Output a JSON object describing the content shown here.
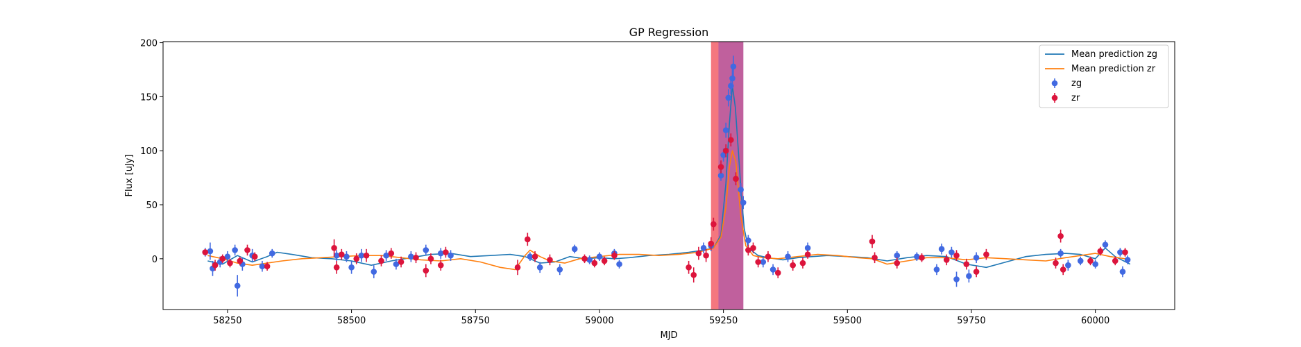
{
  "chart_data": {
    "type": "scatter",
    "title": "GP Regression",
    "xlabel": "MJD",
    "ylabel": "Flux [uJy]",
    "xlim": [
      58120,
      60160
    ],
    "ylim": [
      -47,
      201
    ],
    "xticks": [
      58250,
      58500,
      58750,
      59000,
      59250,
      59500,
      59750,
      60000
    ],
    "yticks": [
      0,
      50,
      100,
      150,
      200
    ],
    "legend_position": "top-right",
    "colors": {
      "line_zg": "#1f77b4",
      "line_zr": "#ff7f0e",
      "points_zg": "#4169e1",
      "points_zr": "#dc143c",
      "band_red": "#f4777f",
      "band_blue": "#a9a3f5",
      "band_overlap": "#c0609d"
    },
    "bands": [
      {
        "name": "red-band",
        "x0": 59225,
        "x1": 59290
      },
      {
        "name": "blue-band",
        "x0": 59240,
        "x1": 59290
      }
    ],
    "series": [
      {
        "name": "Mean prediction zg",
        "kind": "line",
        "color": "#1f77b4",
        "x": [
          58210,
          58240,
          58270,
          58300,
          58330,
          58350,
          58380,
          58420,
          58460,
          58500,
          58540,
          58580,
          58620,
          58660,
          58700,
          58740,
          58780,
          58820,
          58850,
          58880,
          58910,
          58940,
          58970,
          59000,
          59030,
          59060,
          59100,
          59140,
          59180,
          59210,
          59230,
          59245,
          59255,
          59262,
          59268,
          59274,
          59280,
          59286,
          59292,
          59300,
          59320,
          59340,
          59370,
          59400,
          59430,
          59460,
          59500,
          59540,
          59580,
          59620,
          59660,
          59700,
          59740,
          59780,
          59820,
          59860,
          59900,
          59940,
          59970,
          60000,
          60020,
          60040,
          60070
        ],
        "y": [
          -2,
          -5,
          3,
          -3,
          2,
          6,
          4,
          1,
          0,
          -2,
          -6,
          -2,
          1,
          4,
          5,
          2,
          3,
          4,
          2,
          -4,
          -3,
          2,
          0,
          1,
          0,
          1,
          3,
          4,
          6,
          8,
          10,
          22,
          70,
          125,
          160,
          140,
          100,
          60,
          28,
          10,
          3,
          1,
          -1,
          1,
          2,
          3,
          2,
          1,
          -2,
          1,
          3,
          2,
          -5,
          -8,
          -3,
          2,
          4,
          5,
          4,
          0,
          10,
          2,
          -5
        ]
      },
      {
        "name": "Mean prediction zr",
        "kind": "line",
        "color": "#ff7f0e",
        "x": [
          58210,
          58240,
          58270,
          58300,
          58330,
          58360,
          58400,
          58440,
          58480,
          58520,
          58560,
          58600,
          58640,
          58680,
          58720,
          58760,
          58800,
          58830,
          58850,
          58860,
          58880,
          58900,
          58930,
          58960,
          59000,
          59040,
          59080,
          59120,
          59160,
          59200,
          59230,
          59245,
          59255,
          59262,
          59268,
          59275,
          59285,
          59295,
          59310,
          59330,
          59360,
          59400,
          59440,
          59480,
          59520,
          59550,
          59580,
          59620,
          59660,
          59700,
          59740,
          59780,
          59820,
          59860,
          59900,
          59940,
          59970,
          60000,
          60030,
          60060
        ],
        "y": [
          3,
          0,
          -4,
          -6,
          -4,
          -2,
          0,
          1,
          2,
          3,
          3,
          1,
          -1,
          -2,
          0,
          -3,
          -8,
          -10,
          3,
          8,
          2,
          -2,
          -4,
          0,
          2,
          4,
          4,
          3,
          4,
          6,
          10,
          20,
          48,
          85,
          100,
          90,
          40,
          12,
          3,
          1,
          0,
          2,
          4,
          3,
          1,
          0,
          -5,
          -2,
          1,
          1,
          -1,
          1,
          0,
          -1,
          -2,
          1,
          3,
          5,
          2,
          0
        ]
      },
      {
        "name": "zg",
        "kind": "errorbar",
        "color": "#4169e1",
        "points": [
          [
            58205,
            6,
            4
          ],
          [
            58215,
            7,
            8
          ],
          [
            58220,
            -9,
            7
          ],
          [
            58235,
            -3,
            5
          ],
          [
            58250,
            2,
            5
          ],
          [
            58265,
            8,
            5
          ],
          [
            58270,
            -25,
            10
          ],
          [
            58280,
            -5,
            6
          ],
          [
            58300,
            3,
            6
          ],
          [
            58320,
            -7,
            5
          ],
          [
            58340,
            5,
            4
          ],
          [
            58470,
            3,
            5
          ],
          [
            58490,
            2,
            5
          ],
          [
            58500,
            -8,
            6
          ],
          [
            58520,
            3,
            6
          ],
          [
            58545,
            -12,
            6
          ],
          [
            58570,
            3,
            5
          ],
          [
            58590,
            -5,
            5
          ],
          [
            58620,
            2,
            5
          ],
          [
            58650,
            8,
            5
          ],
          [
            58680,
            5,
            5
          ],
          [
            58700,
            3,
            5
          ],
          [
            58860,
            2,
            4
          ],
          [
            58880,
            -8,
            5
          ],
          [
            58920,
            -10,
            5
          ],
          [
            58950,
            9,
            4
          ],
          [
            58980,
            -1,
            4
          ],
          [
            59000,
            2,
            4
          ],
          [
            59030,
            5,
            4
          ],
          [
            59040,
            -5,
            4
          ],
          [
            59210,
            10,
            5
          ],
          [
            59225,
            12,
            5
          ],
          [
            59245,
            77,
            5
          ],
          [
            59250,
            96,
            6
          ],
          [
            59255,
            119,
            7
          ],
          [
            59260,
            149,
            8
          ],
          [
            59265,
            160,
            8
          ],
          [
            59268,
            167,
            9
          ],
          [
            59270,
            178,
            10
          ],
          [
            59285,
            64,
            6
          ],
          [
            59290,
            52,
            6
          ],
          [
            59300,
            17,
            5
          ],
          [
            59330,
            -3,
            5
          ],
          [
            59350,
            -10,
            5
          ],
          [
            59380,
            2,
            5
          ],
          [
            59420,
            10,
            5
          ],
          [
            59600,
            3,
            4
          ],
          [
            59640,
            2,
            4
          ],
          [
            59680,
            -10,
            5
          ],
          [
            59690,
            9,
            5
          ],
          [
            59710,
            6,
            5
          ],
          [
            59720,
            -19,
            7
          ],
          [
            59745,
            -16,
            6
          ],
          [
            59760,
            1,
            5
          ],
          [
            59930,
            5,
            4
          ],
          [
            59945,
            -6,
            5
          ],
          [
            59970,
            -2,
            4
          ],
          [
            60000,
            -5,
            4
          ],
          [
            60020,
            13,
            4
          ],
          [
            60050,
            6,
            4
          ],
          [
            60055,
            -12,
            5
          ],
          [
            60065,
            -1,
            4
          ]
        ]
      },
      {
        "name": "zr",
        "kind": "errorbar",
        "color": "#dc143c",
        "points": [
          [
            58205,
            6,
            3
          ],
          [
            58225,
            -6,
            5
          ],
          [
            58240,
            0,
            4
          ],
          [
            58255,
            -4,
            4
          ],
          [
            58275,
            -2,
            4
          ],
          [
            58290,
            8,
            5
          ],
          [
            58305,
            2,
            4
          ],
          [
            58330,
            -7,
            4
          ],
          [
            58465,
            10,
            8
          ],
          [
            58470,
            -8,
            6
          ],
          [
            58480,
            4,
            5
          ],
          [
            58510,
            0,
            5
          ],
          [
            58530,
            3,
            6
          ],
          [
            58560,
            -2,
            5
          ],
          [
            58580,
            5,
            5
          ],
          [
            58600,
            -3,
            5
          ],
          [
            58630,
            1,
            5
          ],
          [
            58650,
            -11,
            6
          ],
          [
            58660,
            0,
            5
          ],
          [
            58680,
            -6,
            5
          ],
          [
            58690,
            6,
            5
          ],
          [
            58835,
            -8,
            7
          ],
          [
            58855,
            18,
            6
          ],
          [
            58870,
            2,
            5
          ],
          [
            58900,
            -1,
            5
          ],
          [
            58970,
            0,
            4
          ],
          [
            58990,
            -4,
            4
          ],
          [
            59010,
            -2,
            4
          ],
          [
            59030,
            3,
            4
          ],
          [
            59180,
            -8,
            6
          ],
          [
            59190,
            -15,
            7
          ],
          [
            59200,
            5,
            6
          ],
          [
            59215,
            3,
            6
          ],
          [
            59225,
            14,
            6
          ],
          [
            59230,
            32,
            6
          ],
          [
            59245,
            85,
            6
          ],
          [
            59255,
            100,
            6
          ],
          [
            59265,
            110,
            6
          ],
          [
            59275,
            74,
            6
          ],
          [
            59300,
            8,
            5
          ],
          [
            59310,
            10,
            5
          ],
          [
            59320,
            -3,
            5
          ],
          [
            59340,
            2,
            5
          ],
          [
            59360,
            -13,
            5
          ],
          [
            59390,
            -6,
            5
          ],
          [
            59410,
            -4,
            5
          ],
          [
            59420,
            4,
            4
          ],
          [
            59550,
            16,
            6
          ],
          [
            59555,
            1,
            5
          ],
          [
            59600,
            -4,
            5
          ],
          [
            59650,
            1,
            4
          ],
          [
            59700,
            -1,
            5
          ],
          [
            59720,
            3,
            5
          ],
          [
            59740,
            -5,
            5
          ],
          [
            59760,
            -12,
            5
          ],
          [
            59780,
            4,
            5
          ],
          [
            59920,
            -4,
            5
          ],
          [
            59930,
            21,
            6
          ],
          [
            59935,
            -10,
            5
          ],
          [
            59990,
            -2,
            4
          ],
          [
            60010,
            7,
            4
          ],
          [
            60040,
            -2,
            4
          ],
          [
            60060,
            6,
            4
          ]
        ]
      }
    ]
  }
}
